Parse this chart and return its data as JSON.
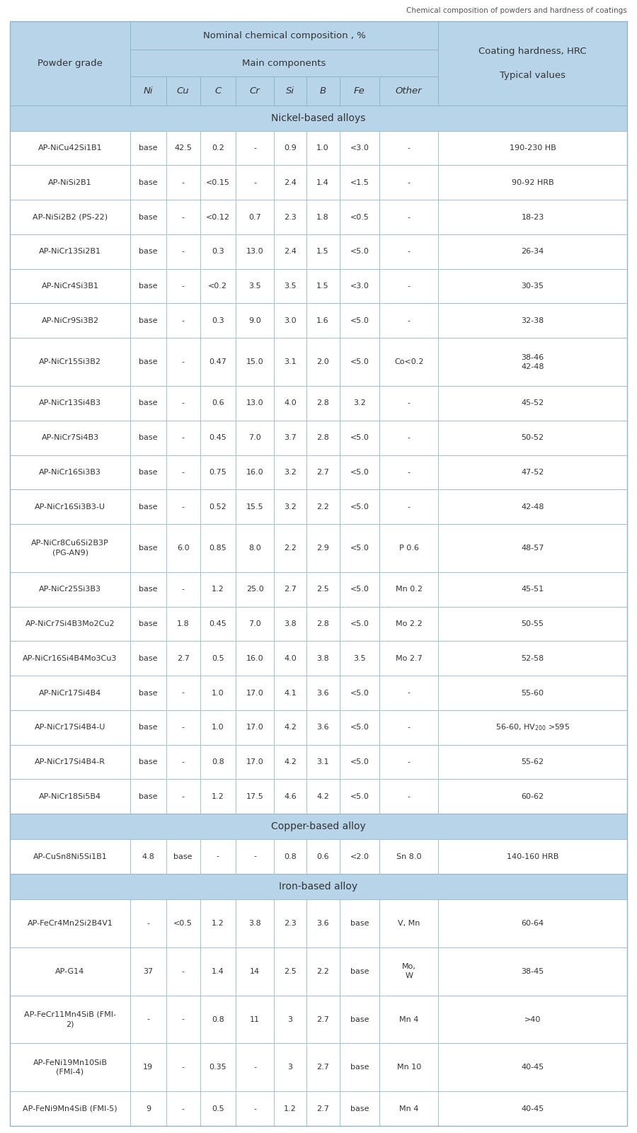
{
  "title": "Chemical composition of powders and hardness of coatings",
  "header_bg": "#b8d4e8",
  "section_bg": "#b8d4e8",
  "row_bg": "#ffffff",
  "border_color": "#90b4c8",
  "sections": [
    {
      "name": "Nickel-based alloys",
      "type": "section"
    },
    {
      "name": "AP-NiCu42Si1B1",
      "Ni": "base",
      "Cu": "42.5",
      "C": "0.2",
      "Cr": "-",
      "Si": "0.9",
      "B": "1.0",
      "Fe": "<3.0",
      "Other": "-",
      "hardness": "190-230 HB"
    },
    {
      "name": "AP-NiSi2B1",
      "Ni": "base",
      "Cu": "-",
      "C": "<0.15",
      "Cr": "-",
      "Si": "2.4",
      "B": "1.4",
      "Fe": "<1.5",
      "Other": "-",
      "hardness": "90-92 HRB"
    },
    {
      "name": "AP-NiSi2B2 (PS-22)",
      "Ni": "base",
      "Cu": "-",
      "C": "<0.12",
      "Cr": "0.7",
      "Si": "2.3",
      "B": "1.8",
      "Fe": "<0.5",
      "Other": "-",
      "hardness": "18-23"
    },
    {
      "name": "AP-NiCr13Si2B1",
      "Ni": "base",
      "Cu": "-",
      "C": "0.3",
      "Cr": "13.0",
      "Si": "2.4",
      "B": "1.5",
      "Fe": "<5.0",
      "Other": "-",
      "hardness": "26-34"
    },
    {
      "name": "AP-NiCr4Si3B1",
      "Ni": "base",
      "Cu": "-",
      "C": "<0.2",
      "Cr": "3.5",
      "Si": "3.5",
      "B": "1.5",
      "Fe": "<3.0",
      "Other": "-",
      "hardness": "30-35"
    },
    {
      "name": "AP-NiCr9Si3B2",
      "Ni": "base",
      "Cu": "-",
      "C": "0.3",
      "Cr": "9.0",
      "Si": "3.0",
      "B": "1.6",
      "Fe": "<5.0",
      "Other": "-",
      "hardness": "32-38"
    },
    {
      "name": "AP-NiCr15Si3B2",
      "Ni": "base",
      "Cu": "-",
      "C": "0.47",
      "Cr": "15.0",
      "Si": "3.1",
      "B": "2.0",
      "Fe": "<5.0",
      "Other": "Co<0.2",
      "hardness": "38-46\n42-48",
      "tall": true
    },
    {
      "name": "AP-NiCr13Si4B3",
      "Ni": "base",
      "Cu": "-",
      "C": "0.6",
      "Cr": "13.0",
      "Si": "4.0",
      "B": "2.8",
      "Fe": "3.2",
      "Other": "-",
      "hardness": "45-52"
    },
    {
      "name": "AP-NiCr7Si4B3",
      "Ni": "base",
      "Cu": "-",
      "C": "0.45",
      "Cr": "7.0",
      "Si": "3.7",
      "B": "2.8",
      "Fe": "<5.0",
      "Other": "-",
      "hardness": "50-52"
    },
    {
      "name": "AP-NiCr16Si3B3",
      "Ni": "base",
      "Cu": "-",
      "C": "0.75",
      "Cr": "16.0",
      "Si": "3.2",
      "B": "2.7",
      "Fe": "<5.0",
      "Other": "-",
      "hardness": "47-52"
    },
    {
      "name": "AP-NiCr16Si3B3-U",
      "Ni": "base",
      "Cu": "-",
      "C": "0.52",
      "Cr": "15.5",
      "Si": "3.2",
      "B": "2.2",
      "Fe": "<5.0",
      "Other": "-",
      "hardness": "42-48"
    },
    {
      "name": "AP-NiCr8Cu6Si2B3P\n(PG-AN9)",
      "Ni": "base",
      "Cu": "6.0",
      "C": "0.85",
      "Cr": "8.0",
      "Si": "2.2",
      "B": "2.9",
      "Fe": "<5.0",
      "Other": "P 0.6",
      "hardness": "48-57",
      "tall": true
    },
    {
      "name": "AP-NiCr25Si3B3",
      "Ni": "base",
      "Cu": "-",
      "C": "1.2",
      "Cr": "25.0",
      "Si": "2.7",
      "B": "2.5",
      "Fe": "<5.0",
      "Other": "Mn 0.2",
      "hardness": "45-51"
    },
    {
      "name": "AP-NiCr7Si4B3Mo2Cu2",
      "Ni": "base",
      "Cu": "1.8",
      "C": "0.45",
      "Cr": "7.0",
      "Si": "3.8",
      "B": "2.8",
      "Fe": "<5.0",
      "Other": "Mo 2.2",
      "hardness": "50-55"
    },
    {
      "name": "AP-NiCr16Si4B4Mo3Cu3",
      "Ni": "base",
      "Cu": "2.7",
      "C": "0.5",
      "Cr": "16.0",
      "Si": "4.0",
      "B": "3.8",
      "Fe": "3.5",
      "Other": "Mo 2.7",
      "hardness": "52-58"
    },
    {
      "name": "AP-NiCr17Si4B4",
      "Ni": "base",
      "Cu": "-",
      "C": "1.0",
      "Cr": "17.0",
      "Si": "4.1",
      "B": "3.6",
      "Fe": "<5.0",
      "Other": "-",
      "hardness": "55-60"
    },
    {
      "name": "AP-NiCr17Si4B4-U",
      "Ni": "base",
      "Cu": "-",
      "C": "1.0",
      "Cr": "17.0",
      "Si": "4.2",
      "B": "3.6",
      "Fe": "<5.0",
      "Other": "-",
      "hardness": "56-60, HV200 >595"
    },
    {
      "name": "AP-NiCr17Si4B4-R",
      "Ni": "base",
      "Cu": "-",
      "C": "0.8",
      "Cr": "17.0",
      "Si": "4.2",
      "B": "3.1",
      "Fe": "<5.0",
      "Other": "-",
      "hardness": "55-62"
    },
    {
      "name": "AP-NiCr18Si5B4",
      "Ni": "base",
      "Cu": "-",
      "C": "1.2",
      "Cr": "17.5",
      "Si": "4.6",
      "B": "4.2",
      "Fe": "<5.0",
      "Other": "-",
      "hardness": "60-62"
    },
    {
      "name": "Copper-based alloy",
      "type": "section"
    },
    {
      "name": "AP-CuSn8Ni5Si1B1",
      "Ni": "4.8",
      "Cu": "base",
      "C": "-",
      "Cr": "-",
      "Si": "0.8",
      "B": "0.6",
      "Fe": "<2.0",
      "Other": "Sn 8.0",
      "hardness": "140-160 HRB"
    },
    {
      "name": "Iron-based alloy",
      "type": "section"
    },
    {
      "name": "AP-FeCr4Mn2Si2B4V1",
      "Ni": "-",
      "Cu": "<0.5",
      "C": "1.2",
      "Cr": "3.8",
      "Si": "2.3",
      "B": "3.6",
      "Fe": "base",
      "Other": "V, Mn",
      "hardness": "60-64",
      "tall": true
    },
    {
      "name": "AP-G14",
      "Ni": "37",
      "Cu": "-",
      "C": "1.4",
      "Cr": "14",
      "Si": "2.5",
      "B": "2.2",
      "Fe": "base",
      "Other": "Mo,\nW",
      "hardness": "38-45",
      "tall": true
    },
    {
      "name": "AP-FeCr11Mn4SiB (FMI-\n2)",
      "Ni": "-",
      "Cu": "-",
      "C": "0.8",
      "Cr": "11",
      "Si": "3",
      "B": "2.7",
      "Fe": "base",
      "Other": "Mn 4",
      "hardness": ">40",
      "tall": true
    },
    {
      "name": "AP-FeNi19Mn10SiB\n(FMI-4)",
      "Ni": "19",
      "Cu": "-",
      "C": "0.35",
      "Cr": "-",
      "Si": "3",
      "B": "2.7",
      "Fe": "base",
      "Other": "Mn 10",
      "hardness": "40-45",
      "tall": true
    },
    {
      "name": "AP-FeNi9Mn4SiB (FMI-5)",
      "Ni": "9",
      "Cu": "-",
      "C": "0.5",
      "Cr": "-",
      "Si": "1.2",
      "B": "2.7",
      "Fe": "base",
      "Other": "Mn 4",
      "hardness": "40-45"
    }
  ]
}
